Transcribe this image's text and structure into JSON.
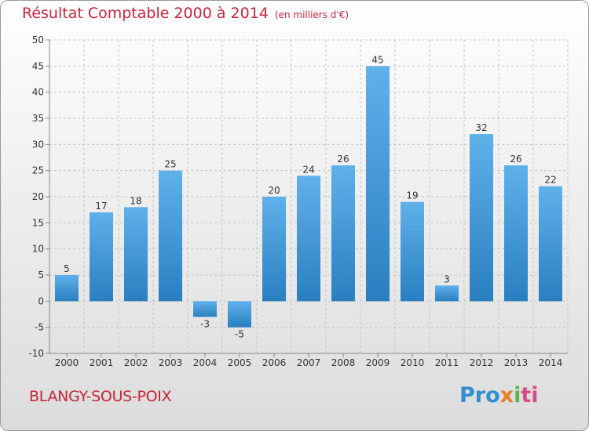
{
  "chart_data": {
    "type": "bar",
    "title": "Résultat Comptable 2000 à 2014",
    "subtitle": "(en milliers d'€)",
    "categories": [
      "2000",
      "2001",
      "2002",
      "2003",
      "2004",
      "2005",
      "2006",
      "2007",
      "2008",
      "2009",
      "2010",
      "2011",
      "2012",
      "2013",
      "2014"
    ],
    "values": [
      5,
      17,
      18,
      25,
      -3,
      -5,
      20,
      24,
      26,
      45,
      19,
      3,
      32,
      26,
      22
    ],
    "ylim": [
      -10,
      50
    ],
    "yticks": [
      -10,
      -5,
      0,
      5,
      10,
      15,
      20,
      25,
      30,
      35,
      40,
      45,
      50
    ],
    "grid": true,
    "xlabel": "",
    "ylabel": ""
  },
  "location": "BLANGY-SOUS-POIX",
  "logo": {
    "text": "Proxiti",
    "parts": [
      "Pro",
      "x",
      "i",
      "ti"
    ]
  },
  "colors": {
    "title": "#c8243a",
    "bar_top": "#5fb1ea",
    "bar_bottom": "#2a7fc0"
  }
}
